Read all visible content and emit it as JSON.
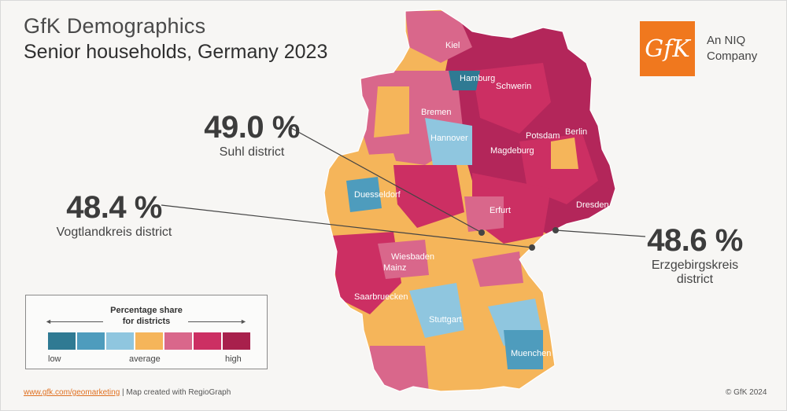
{
  "header": {
    "title": "GfK Demographics",
    "subtitle": "Senior households, Germany 2023"
  },
  "logo": {
    "mark": "GfK",
    "tagline_line1": "An NIQ",
    "tagline_line2": "Company",
    "color": "#f0781e"
  },
  "callouts": [
    {
      "value": "49.0 %",
      "label": "Suhl district"
    },
    {
      "value": "48.4 %",
      "label": "Vogtlandkreis district"
    },
    {
      "value": "48.6 %",
      "label_line1": "Erzgebirgskreis",
      "label_line2": "district"
    }
  ],
  "cities": [
    "Kiel",
    "Hamburg",
    "Schwerin",
    "Bremen",
    "Berlin",
    "Potsdam",
    "Hannover",
    "Magdeburg",
    "Duesseldorf",
    "Erfurt",
    "Dresden",
    "Wiesbaden",
    "Mainz",
    "Saarbruecken",
    "Stuttgart",
    "Muenchen"
  ],
  "legend": {
    "title_line1": "Percentage share",
    "title_line2": "for districts",
    "low": "low",
    "average": "average",
    "high": "high",
    "colors": [
      "#2f7a93",
      "#4e9cbd",
      "#8fc6df",
      "#f5b55a",
      "#d9678b",
      "#cc2f63",
      "#a8204c"
    ]
  },
  "footer": {
    "link": "www.gfk.com/geomarketing",
    "text": " | Map created with RegioGraph",
    "copyright": "© GfK 2024"
  }
}
